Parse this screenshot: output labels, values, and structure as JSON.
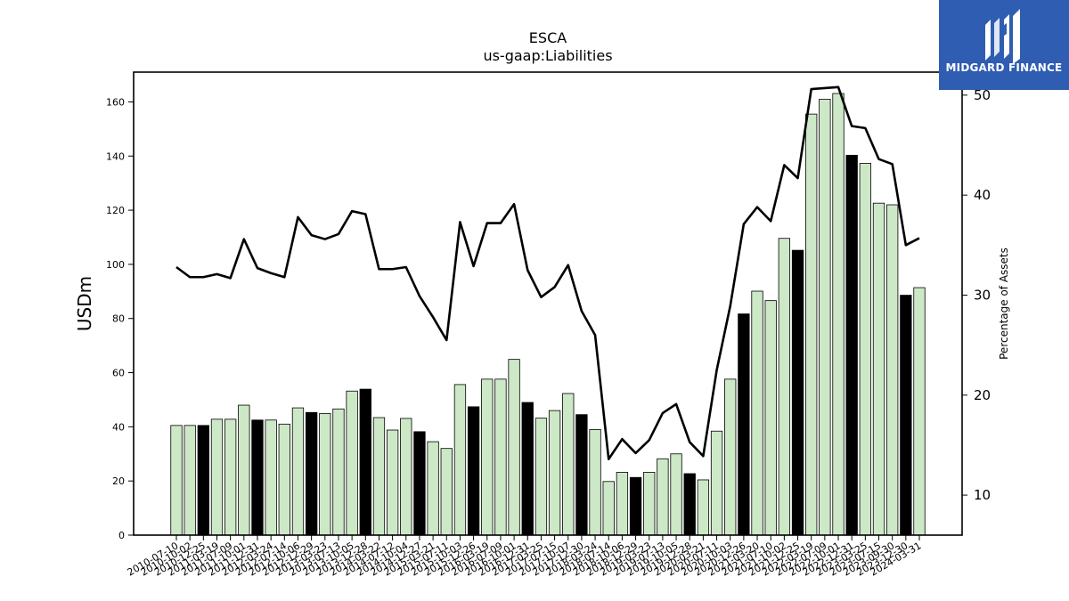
{
  "logo": {
    "text": "MIDGARD FINANCE",
    "background": "#2f5db1"
  },
  "chart_data": {
    "type": "bar",
    "title": "ESCA",
    "subtitle": "us-gaap:Liabilities",
    "ylabel": "USDm",
    "y2label": "Percentage of Assets",
    "ylim": [
      0,
      171
    ],
    "yticks": [
      0,
      20,
      40,
      60,
      80,
      100,
      120,
      140,
      160
    ],
    "y2lim": [
      6.0,
      52.3
    ],
    "y2ticks": [
      10,
      20,
      30,
      40,
      50
    ],
    "bar_color_green": "#cde8c6",
    "bar_color_black": "#000000",
    "line_color": "#000000",
    "categories": [
      "2010-07-10",
      "2010-10-02",
      "2010-12-25",
      "2011-03-19",
      "2011-07-09",
      "2011-10-01",
      "2011-12-31",
      "2012-03-24",
      "2012-07-14",
      "2012-10-06",
      "2012-12-29",
      "2013-03-23",
      "2013-07-13",
      "2013-10-05",
      "2013-12-28",
      "2014-03-22",
      "2014-07-12",
      "2014-10-04",
      "2014-12-27",
      "2015-03-21",
      "2015-07-11",
      "2015-10-03",
      "2015-12-26",
      "2016-03-19",
      "2016-07-09",
      "2016-10-01",
      "2016-12-31",
      "2017-03-25",
      "2017-07-15",
      "2017-10-07",
      "2017-12-30",
      "2018-03-24",
      "2018-07-14",
      "2018-10-06",
      "2018-12-29",
      "2019-03-23",
      "2019-07-13",
      "2019-10-05",
      "2019-12-28",
      "2020-03-21",
      "2020-07-11",
      "2020-10-03",
      "2020-12-26",
      "2021-03-20",
      "2021-07-10",
      "2021-10-02",
      "2021-12-25",
      "2022-03-19",
      "2022-07-09",
      "2022-10-01",
      "2022-12-31",
      "2023-03-25",
      "2023-07-15",
      "2023-09-30",
      "2023-12-30",
      "2024-03-31"
    ],
    "bar_colors": [
      "g",
      "g",
      "k",
      "g",
      "g",
      "g",
      "k",
      "g",
      "g",
      "g",
      "k",
      "g",
      "g",
      "g",
      "k",
      "g",
      "g",
      "g",
      "k",
      "g",
      "g",
      "g",
      "k",
      "g",
      "g",
      "g",
      "k",
      "g",
      "g",
      "g",
      "k",
      "g",
      "g",
      "g",
      "k",
      "g",
      "g",
      "g",
      "k",
      "g",
      "g",
      "g",
      "k",
      "g",
      "g",
      "g",
      "k",
      "g",
      "g",
      "g",
      "k",
      "g",
      "g",
      "g",
      "k",
      "g"
    ],
    "series": [
      {
        "name": "Liabilities",
        "type": "bar",
        "axis": "left",
        "values": [
          40.5,
          40.5,
          40.5,
          42.8,
          42.8,
          48.0,
          42.5,
          42.5,
          41.0,
          47.0,
          45.3,
          44.9,
          46.6,
          53.2,
          53.9,
          43.4,
          38.8,
          43.1,
          38.2,
          34.5,
          32.0,
          55.6,
          47.4,
          57.6,
          57.6,
          64.9,
          49.0,
          43.2,
          46.0,
          52.3,
          44.5,
          39.0,
          19.8,
          23.2,
          21.3,
          23.2,
          28.2,
          30.0,
          22.7,
          20.4,
          38.4,
          57.6,
          81.7,
          90.1,
          86.6,
          109.6,
          105.2,
          155.5,
          161.0,
          163.1,
          140.3,
          137.3,
          122.6,
          122.0,
          88.6,
          91.4
        ]
      },
      {
        "name": "Percentage of Assets",
        "type": "line",
        "axis": "right",
        "values": [
          32.8,
          31.8,
          31.8,
          32.1,
          31.7,
          35.6,
          32.7,
          32.2,
          31.8,
          37.8,
          36.0,
          35.6,
          36.1,
          38.4,
          38.1,
          32.6,
          32.6,
          32.8,
          29.9,
          27.8,
          25.5,
          37.3,
          32.9,
          37.2,
          37.2,
          39.1,
          32.5,
          29.8,
          30.8,
          33.0,
          28.4,
          26.0,
          13.6,
          15.6,
          14.2,
          15.5,
          18.2,
          19.1,
          15.3,
          13.9,
          22.5,
          28.9,
          37.1,
          38.8,
          37.4,
          43.0,
          41.7,
          50.6,
          50.7,
          50.8,
          46.9,
          46.7,
          43.6,
          43.1,
          35.0,
          35.7
        ]
      }
    ]
  }
}
